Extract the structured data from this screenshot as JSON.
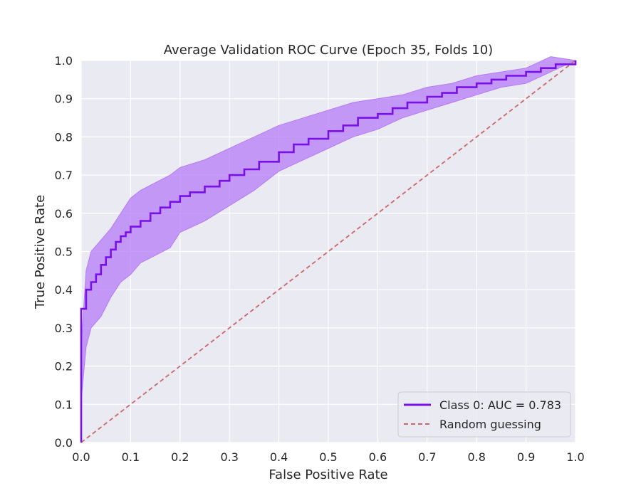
{
  "colors": {
    "plot_background": "#EAEAF2",
    "grid": "#FFFFFF",
    "roc_line": "#7A10E8",
    "confidence_band": "#B57BF7",
    "random_line": "#CD6668",
    "legend_border": "#CCCCCC",
    "legend_fill": "#EAEAF2"
  },
  "chart_data": {
    "type": "line",
    "title": "Average Validation ROC Curve (Epoch 35, Folds 10)",
    "xlabel": "False Positive Rate",
    "ylabel": "True Positive Rate",
    "xlim": [
      0.0,
      1.0
    ],
    "ylim": [
      0.0,
      1.0
    ],
    "grid": true,
    "xticks": [
      "0.0",
      "0.1",
      "0.2",
      "0.3",
      "0.4",
      "0.5",
      "0.6",
      "0.7",
      "0.8",
      "0.9",
      "1.0"
    ],
    "yticks": [
      "0.0",
      "0.1",
      "0.2",
      "0.3",
      "0.4",
      "0.5",
      "0.6",
      "0.7",
      "0.8",
      "0.9",
      "1.0"
    ],
    "legend_position": "lower-right",
    "series": [
      {
        "name": "Class 0: AUC = 0.783",
        "style": "solid-step",
        "x": [
          0.0,
          0.01,
          0.02,
          0.03,
          0.04,
          0.05,
          0.06,
          0.07,
          0.08,
          0.09,
          0.1,
          0.12,
          0.14,
          0.16,
          0.18,
          0.2,
          0.22,
          0.25,
          0.28,
          0.3,
          0.33,
          0.36,
          0.4,
          0.43,
          0.46,
          0.5,
          0.53,
          0.56,
          0.6,
          0.63,
          0.66,
          0.7,
          0.73,
          0.76,
          0.8,
          0.83,
          0.86,
          0.9,
          0.93,
          0.96,
          1.0
        ],
        "y": [
          0.35,
          0.4,
          0.42,
          0.44,
          0.465,
          0.485,
          0.505,
          0.525,
          0.54,
          0.55,
          0.565,
          0.58,
          0.6,
          0.615,
          0.63,
          0.645,
          0.655,
          0.67,
          0.685,
          0.7,
          0.715,
          0.735,
          0.76,
          0.78,
          0.795,
          0.815,
          0.83,
          0.85,
          0.86,
          0.875,
          0.89,
          0.905,
          0.915,
          0.93,
          0.94,
          0.95,
          0.96,
          0.97,
          0.98,
          0.99,
          1.0
        ]
      },
      {
        "name": "Random guessing",
        "style": "dashed",
        "x": [
          0.0,
          1.0
        ],
        "y": [
          0.0,
          1.0
        ]
      }
    ],
    "band": {
      "name": "std band",
      "x": [
        0.0,
        0.01,
        0.02,
        0.04,
        0.06,
        0.08,
        0.1,
        0.12,
        0.15,
        0.18,
        0.2,
        0.25,
        0.3,
        0.35,
        0.4,
        0.45,
        0.5,
        0.55,
        0.6,
        0.65,
        0.7,
        0.75,
        0.8,
        0.85,
        0.9,
        0.95,
        1.0
      ],
      "upper": [
        0.25,
        0.45,
        0.5,
        0.53,
        0.56,
        0.6,
        0.64,
        0.66,
        0.68,
        0.7,
        0.72,
        0.74,
        0.77,
        0.8,
        0.83,
        0.85,
        0.87,
        0.89,
        0.9,
        0.91,
        0.93,
        0.94,
        0.96,
        0.97,
        0.98,
        1.01,
        1.0
      ],
      "lower": [
        0.11,
        0.25,
        0.3,
        0.33,
        0.38,
        0.42,
        0.44,
        0.47,
        0.49,
        0.51,
        0.55,
        0.58,
        0.62,
        0.66,
        0.71,
        0.74,
        0.77,
        0.8,
        0.82,
        0.85,
        0.87,
        0.89,
        0.91,
        0.93,
        0.94,
        0.97,
        1.0
      ]
    }
  }
}
